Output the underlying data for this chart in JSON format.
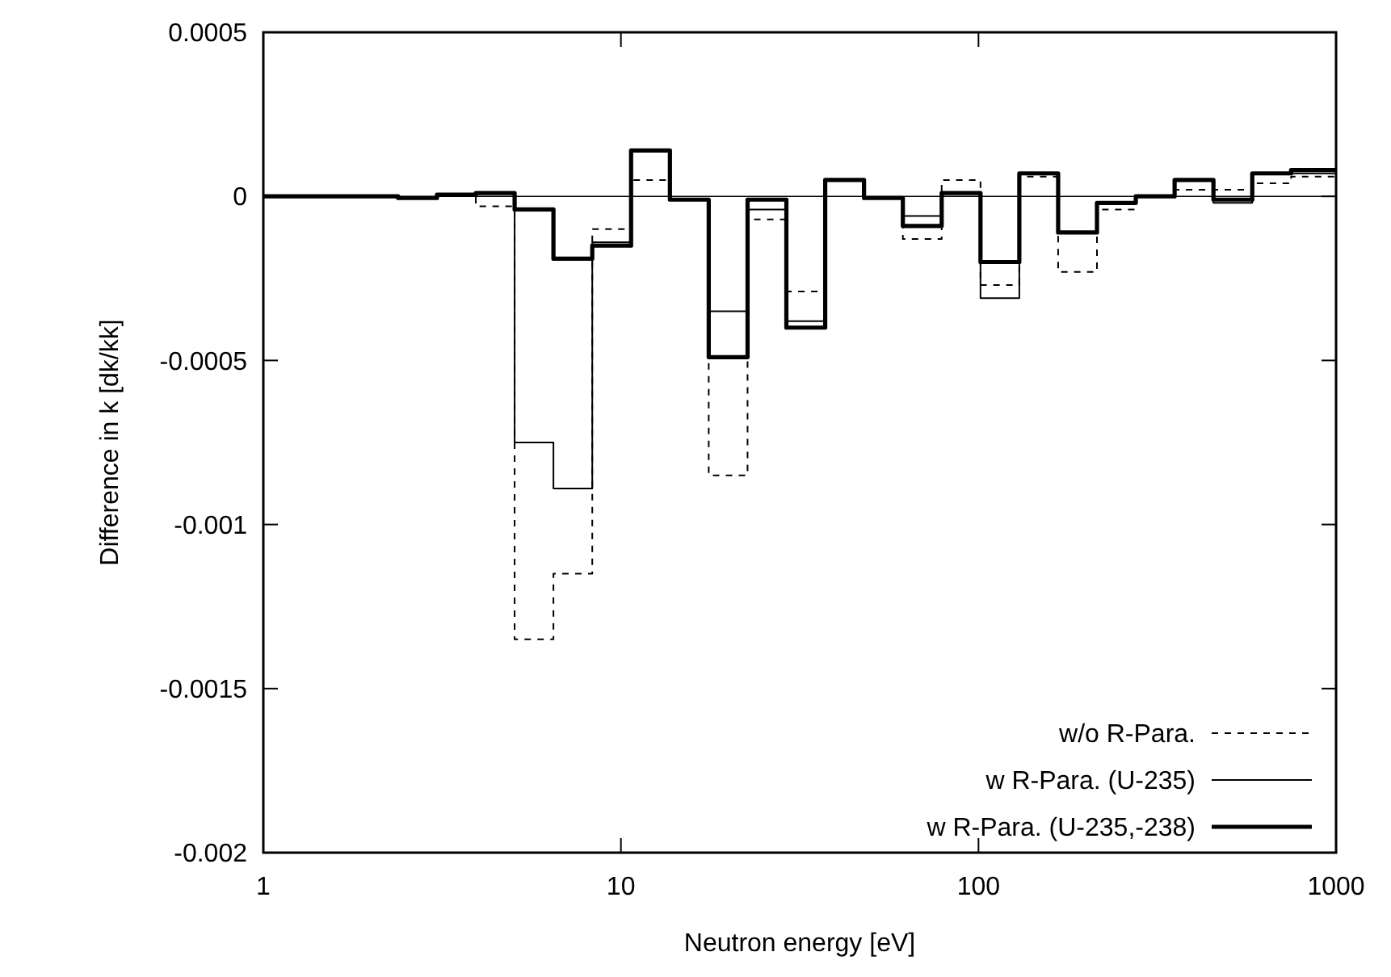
{
  "chart_data": {
    "type": "step",
    "xlabel": "Neutron energy [eV]",
    "ylabel": "Difference in k [dk/kk]",
    "log": "x",
    "x": [
      1,
      2.3824,
      3.059,
      3.9279,
      5.0435,
      6.476,
      8.3153,
      10.677,
      13.71,
      17.603,
      22.603,
      29.023,
      37.267,
      47.851,
      61.442,
      78.893,
      101.3,
      130.07,
      167.02,
      214.45,
      275.36,
      353.57,
      454,
      582.95,
      748.52,
      1000
    ],
    "series": [
      {
        "name": "w/o R-Para.",
        "color": "#000000",
        "line_style": "dashed",
        "values": [
          0,
          -5e-06,
          5e-06,
          -3e-05,
          -0.00135,
          -0.00115,
          -0.0001,
          5e-05,
          -1e-05,
          -0.00085,
          -7e-05,
          -0.00029,
          5e-05,
          -5e-06,
          -0.00013,
          5e-05,
          -0.00027,
          6e-05,
          -0.00023,
          -4e-05,
          0,
          2e-05,
          2e-05,
          4e-05,
          6e-05,
          6e-05
        ]
      },
      {
        "name": "w R-Para. (U-235)",
        "color": "#000000",
        "line_style": "solid",
        "values": [
          0,
          -5e-06,
          5e-06,
          1e-05,
          -0.00075,
          -0.00089,
          -0.00014,
          0.00014,
          -1e-05,
          -0.00035,
          -4e-05,
          -0.00038,
          5e-05,
          -5e-06,
          -6e-05,
          1e-05,
          -0.00031,
          7e-05,
          -0.00011,
          -2e-05,
          0,
          5e-05,
          -2e-05,
          7e-05,
          7e-05,
          7e-05
        ]
      },
      {
        "name": "w R-Para. (U-235,-238)",
        "color": "#000000",
        "line_style": "solid",
        "values": [
          0,
          -5e-06,
          5e-06,
          1e-05,
          -4e-05,
          -0.00019,
          -0.00015,
          0.00014,
          -1e-05,
          -0.00049,
          -1e-05,
          -0.0004,
          5e-05,
          -5e-06,
          -9e-05,
          1e-05,
          -0.0002,
          7e-05,
          -0.00011,
          -2e-05,
          0,
          5e-05,
          -1e-05,
          7e-05,
          8e-05,
          8e-05
        ]
      }
    ],
    "xlim": [
      1,
      1000
    ],
    "xticks": [
      1,
      10,
      100,
      1000
    ],
    "ylim": [
      -0.002,
      0.0005
    ],
    "yticks": [
      -0.002,
      -0.0015,
      -0.001,
      -0.0005,
      0,
      0.0005
    ],
    "ref_lines": [
      {
        "axis": "y",
        "value": 0,
        "color": "#000000"
      }
    ],
    "grid": false,
    "legend": "bottom right"
  }
}
